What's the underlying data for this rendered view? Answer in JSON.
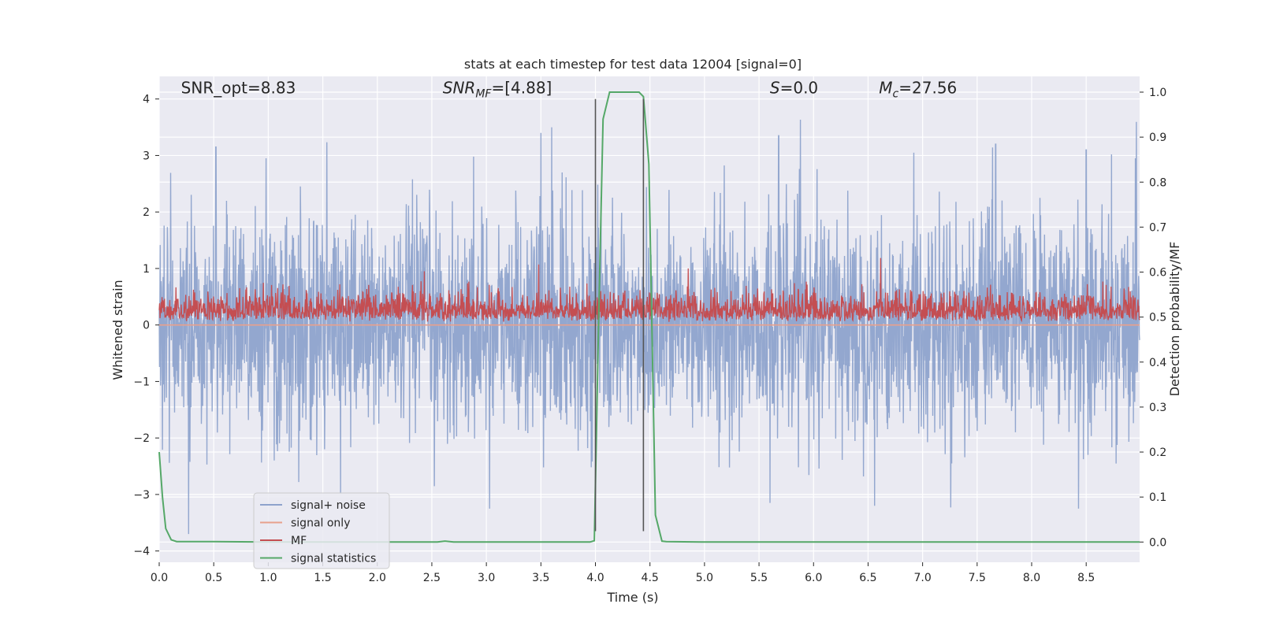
{
  "chart_data": {
    "type": "line",
    "title": "stats at each timestep for test data 12004 [signal=0]",
    "xlabel": "Time (s)",
    "ylabel_left": "Whitened strain",
    "ylabel_right": "Detection probability/MF",
    "xlim": [
      0.0,
      8.99
    ],
    "ylim_left": [
      -4.2,
      4.4
    ],
    "ylim_right": [
      -0.045,
      1.035
    ],
    "x_ticks": [
      "0.0",
      "0.5",
      "1.0",
      "1.5",
      "2.0",
      "2.5",
      "3.0",
      "3.5",
      "4.0",
      "4.5",
      "5.0",
      "5.5",
      "6.0",
      "6.5",
      "7.0",
      "7.5",
      "8.0",
      "8.5"
    ],
    "y_ticks_left": [
      "−4",
      "−3",
      "−2",
      "−1",
      "0",
      "1",
      "2",
      "3",
      "4"
    ],
    "y_ticks_right": [
      "0.0",
      "0.1",
      "0.2",
      "0.3",
      "0.4",
      "0.5",
      "0.6",
      "0.7",
      "0.8",
      "0.9",
      "1.0"
    ],
    "grid": true,
    "legend_position": "lower-left",
    "annotations": [
      {
        "text": "SNR_opt=8.83",
        "x": 0.2,
        "y_right": 1.01,
        "italic_parts": false
      },
      {
        "text_main": "SNR",
        "text_sub": "MF",
        "text_tail": "=[4.88]",
        "x": 2.6,
        "y_right": 1.01
      },
      {
        "text_main": "S",
        "text_tail": "=0.0",
        "x": 5.6,
        "y_right": 1.01
      },
      {
        "text_main": "M",
        "text_sub": "c",
        "text_tail": "=27.56",
        "x": 6.6,
        "y_right": 1.01
      }
    ],
    "vlines": [
      {
        "x": 4.0,
        "y_range": [
          -3.65,
          4.0
        ],
        "color": "#555555"
      },
      {
        "x": 4.44,
        "y_range": [
          -3.65,
          4.0
        ],
        "color": "#555555"
      }
    ],
    "series": [
      {
        "name": "signal+ noise",
        "color": "#8ea3cc",
        "axis": "left",
        "kind": "noise",
        "sigma": 0.95,
        "peaks": [
          [
            0.27,
            -3.7
          ],
          [
            0.52,
            3.15
          ],
          [
            0.98,
            2.95
          ],
          [
            2.45,
            1.45
          ],
          [
            3.03,
            -3.25
          ],
          [
            3.5,
            3.4
          ],
          [
            3.6,
            3.5
          ],
          [
            5.6,
            -3.15
          ],
          [
            5.68,
            3.35
          ],
          [
            6.56,
            -3.2
          ],
          [
            6.92,
            3.05
          ],
          [
            7.67,
            3.2
          ],
          [
            8.43,
            -3.25
          ],
          [
            8.5,
            3.1
          ],
          [
            8.95,
            2.95
          ]
        ]
      },
      {
        "name": "signal only",
        "color": "#e8a08c",
        "axis": "left",
        "kind": "flat",
        "value": 0.0
      },
      {
        "name": "MF",
        "color": "#c44e52",
        "axis": "left",
        "kind": "mf",
        "base": 0.05,
        "amp": 0.45,
        "peaks": [
          [
            2.43,
            0.95
          ],
          [
            4.85,
            1.0
          ],
          [
            4.05,
            0.6
          ]
        ]
      },
      {
        "name": "signal statistics",
        "color": "#55a868",
        "axis": "right",
        "x": [
          0.0,
          0.03,
          0.06,
          0.11,
          0.16,
          0.25,
          0.5,
          1.0,
          2.0,
          2.55,
          2.62,
          2.7,
          3.0,
          3.5,
          3.95,
          3.99,
          4.03,
          4.07,
          4.13,
          4.25,
          4.35,
          4.4,
          4.44,
          4.49,
          4.55,
          4.61,
          4.65,
          5.0,
          6.0,
          7.0,
          8.0,
          8.99
        ],
        "y": [
          0.2,
          0.1,
          0.03,
          0.005,
          0.001,
          0.001,
          0.001,
          0.0,
          0.0,
          0.0,
          0.002,
          0.0,
          0.0,
          0.0,
          0.0,
          0.003,
          0.5,
          0.94,
          1.0,
          1.0,
          1.0,
          1.0,
          0.99,
          0.84,
          0.06,
          0.002,
          0.001,
          0.0,
          0.0,
          0.0,
          0.0,
          0.0
        ]
      }
    ]
  }
}
